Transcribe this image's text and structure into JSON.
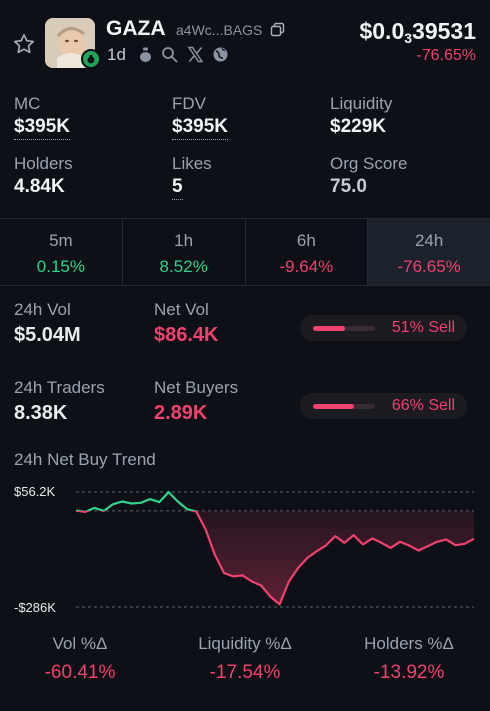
{
  "header": {
    "name": "GAZA",
    "address": "a4Wc...BAGS",
    "age": "1d",
    "price_prefix": "$0.0",
    "price_zeros": "3",
    "price_digits": "39531",
    "price_change": "-76.65%",
    "icons": [
      "star-icon",
      "copy-icon",
      "bag-icon",
      "search-icon",
      "x-icon",
      "globe-icon"
    ]
  },
  "stats": {
    "mc_label": "MC",
    "mc_value": "$395K",
    "fdv_label": "FDV",
    "fdv_value": "$395K",
    "liq_label": "Liquidity",
    "liq_value": "$229K",
    "holders_label": "Holders",
    "holders_value": "4.84K",
    "likes_label": "Likes",
    "likes_value": "5",
    "org_label": "Org Score",
    "org_value": "75.0"
  },
  "timeframes": [
    {
      "label": "5m",
      "value": "0.15%",
      "trend": "up"
    },
    {
      "label": "1h",
      "value": "8.52%",
      "trend": "up"
    },
    {
      "label": "6h",
      "value": "-9.64%",
      "trend": "down"
    },
    {
      "label": "24h",
      "value": "-76.65%",
      "trend": "down",
      "active": true
    }
  ],
  "volume": {
    "vol_label": "24h Vol",
    "vol_value": "$5.04M",
    "netvol_label": "Net Vol",
    "netvol_value": "$86.4K",
    "vol_sell_text": "51% Sell",
    "vol_sell_pct": 51,
    "traders_label": "24h Traders",
    "traders_value": "8.38K",
    "netbuyers_label": "Net Buyers",
    "netbuyers_value": "2.89K",
    "traders_sell_text": "66% Sell",
    "traders_sell_pct": 66
  },
  "trend": {
    "title": "24h Net Buy Trend",
    "y_top_label": "$56.2K",
    "y_bottom_label": "-$286K"
  },
  "chart_data": {
    "type": "line",
    "title": "24h Net Buy Trend",
    "ylim": [
      -286,
      56.2
    ],
    "y_unit": "$K",
    "baseline": 0,
    "values": [
      1,
      -3,
      9,
      0,
      20,
      28,
      22,
      24,
      35,
      26,
      56,
      28,
      5,
      -2,
      -55,
      -130,
      -185,
      -195,
      -192,
      -210,
      -222,
      -255,
      -278,
      -210,
      -170,
      -140,
      -120,
      -103,
      -75,
      -95,
      -72,
      -100,
      -82,
      -95,
      -110,
      -92,
      -103,
      -118,
      -105,
      -92,
      -85,
      -102,
      -98,
      -83
    ]
  },
  "bottom": [
    {
      "label": "Vol %Δ",
      "value": "-60.41%"
    },
    {
      "label": "Liquidity %Δ",
      "value": "-17.54%"
    },
    {
      "label": "Holders %Δ",
      "value": "-13.92%"
    }
  ],
  "colors": {
    "positive": "#2fd38b",
    "negative": "#f0416f",
    "background": "#0d1016"
  }
}
